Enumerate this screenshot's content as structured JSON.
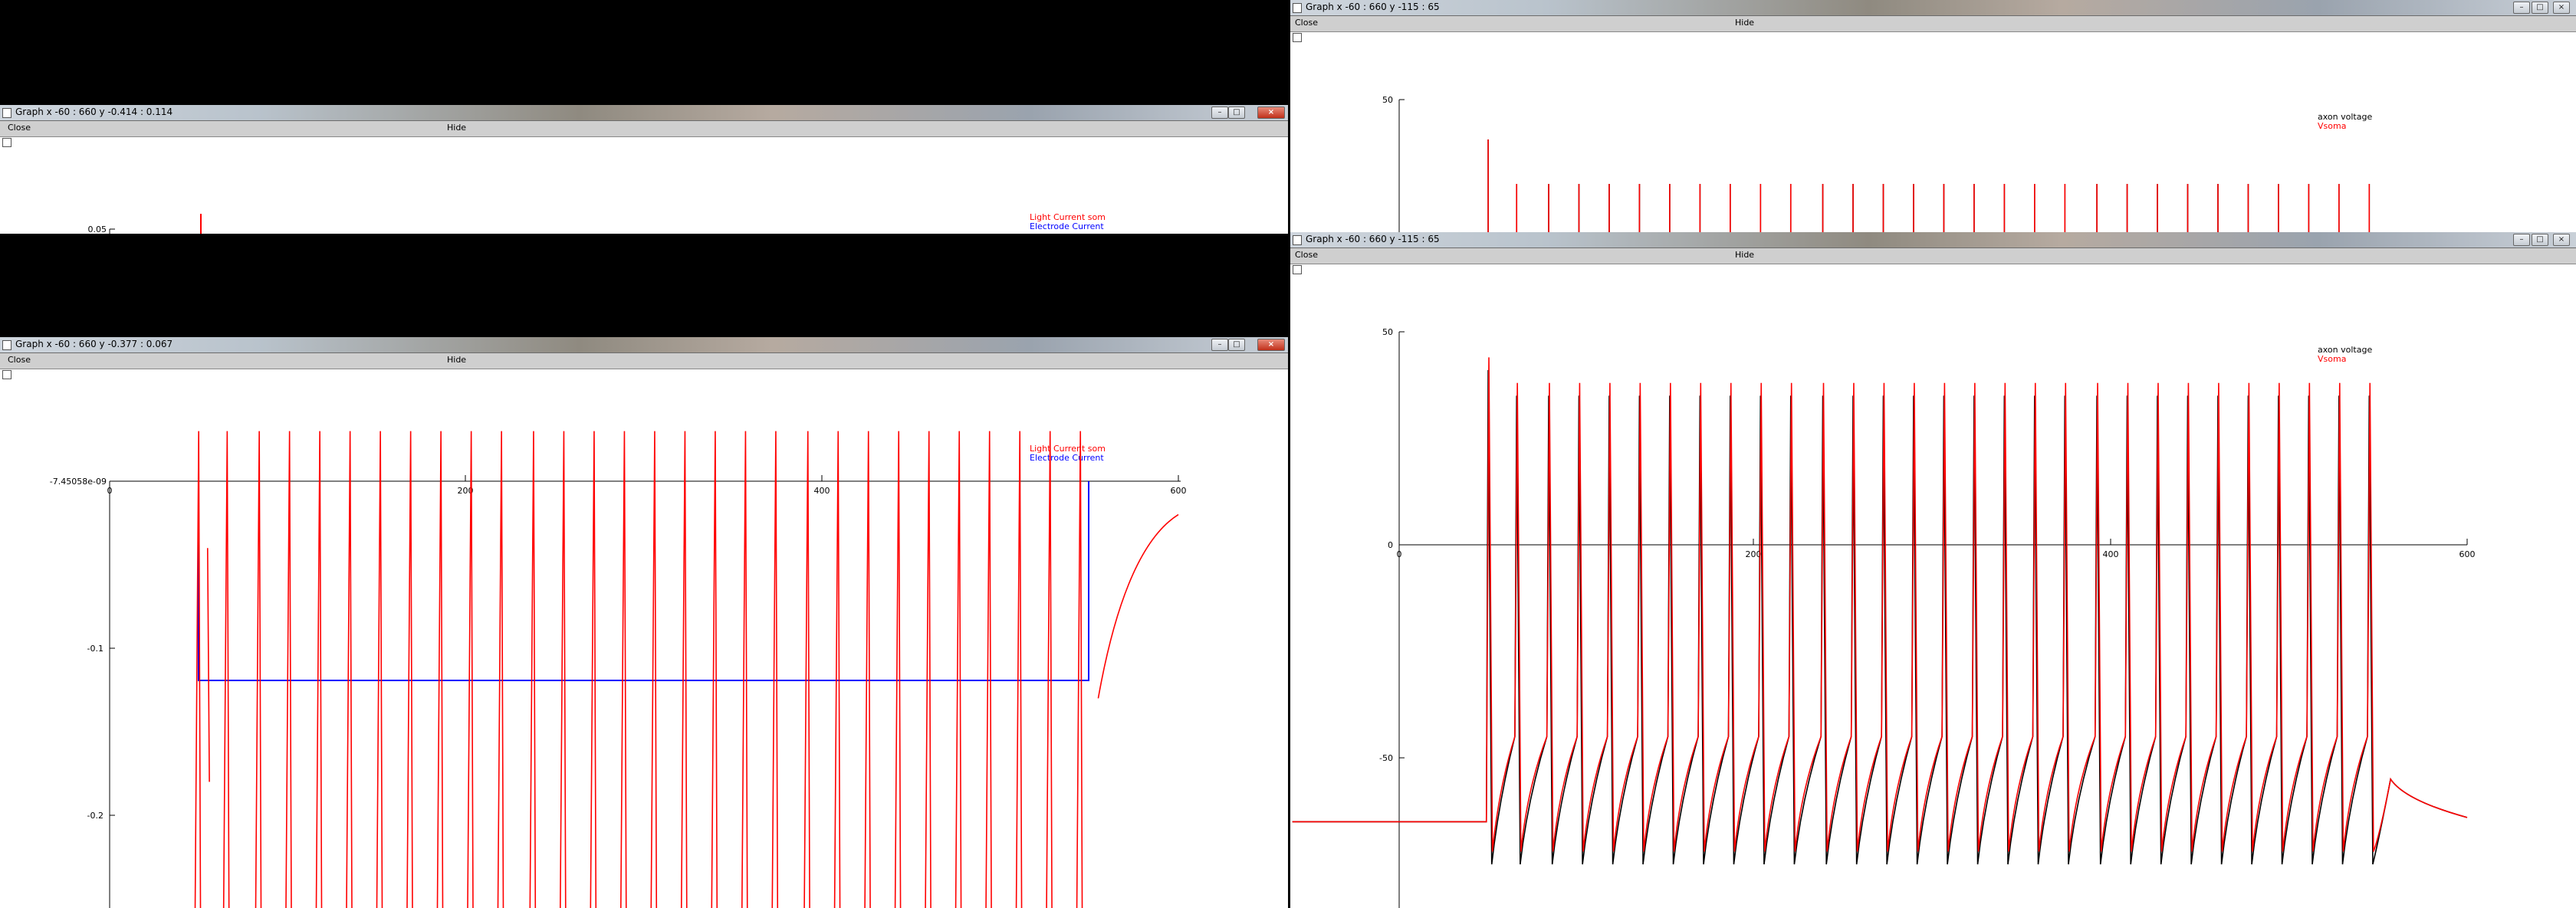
{
  "windows": {
    "w1": {
      "title": "Graph  x -60 : 660  y -0.414 : 0.114",
      "close_label": "Close",
      "hide_label": "Hide",
      "yticks": [
        "0.05"
      ],
      "legend": [
        "Light Current som",
        "Electrode Current"
      ]
    },
    "w2": {
      "title": "Graph  x -60 : 660  y -0.377 : 0.067",
      "close_label": "Close",
      "hide_label": "Hide",
      "yticks": [
        "-7.45058e-09",
        "-0.1",
        "-0.2"
      ],
      "xticks": [
        "0",
        "200",
        "400",
        "600"
      ],
      "legend": [
        "Light Current som",
        "Electrode Current"
      ]
    },
    "w3": {
      "title": "Graph  x -60 : 660  y -115 : 65",
      "close_label": "Close",
      "hide_label": "Hide",
      "yticks": [
        "50"
      ],
      "legend": [
        "axon voltage",
        "Vsoma"
      ]
    },
    "w4": {
      "title": "Graph  x -60 : 660  y -115 : 65",
      "close_label": "Close",
      "hide_label": "Hide",
      "yticks": [
        "50",
        "0",
        "-50"
      ],
      "xticks": [
        "0",
        "200",
        "400",
        "600"
      ],
      "legend": [
        "axon voltage",
        "Vsoma"
      ]
    }
  },
  "colors": {
    "red": "#ff0000",
    "blue": "#0000ff",
    "black": "#000000"
  },
  "chart_data": [
    {
      "type": "line",
      "window": "w2",
      "xlim": [
        -60,
        660
      ],
      "ylim": [
        -0.377,
        0.067
      ],
      "series": [
        {
          "name": "Light Current som",
          "color": "#ff0000",
          "x": [
            56,
            64,
            600,
            610,
            660
          ],
          "y": [
            -0.07,
            -0.23,
            -0.23,
            -0.13,
            -0.01
          ]
        },
        {
          "name": "Electrode Current",
          "color": "#0000ff",
          "x": [
            50,
            50,
            550,
            550,
            600
          ],
          "y": [
            0,
            -0.12,
            -0.12,
            0,
            0
          ]
        }
      ]
    },
    {
      "type": "line",
      "window": "w4",
      "xlim": [
        -60,
        660
      ],
      "ylim": [
        -115,
        65
      ],
      "spike_times": [
        50,
        66,
        84,
        101,
        118,
        135,
        152,
        169,
        186,
        203,
        220,
        238,
        255,
        272,
        289,
        306,
        323,
        340,
        357,
        374,
        392,
        409,
        426,
        443,
        460,
        477,
        494,
        511,
        528,
        545
      ],
      "series": [
        {
          "name": "axon voltage",
          "color": "#000000",
          "peak": 35,
          "trough": -75,
          "rest": -65
        },
        {
          "name": "Vsoma",
          "color": "#ff0000",
          "peak": 38,
          "trough": -72,
          "rest": -65
        }
      ]
    }
  ]
}
